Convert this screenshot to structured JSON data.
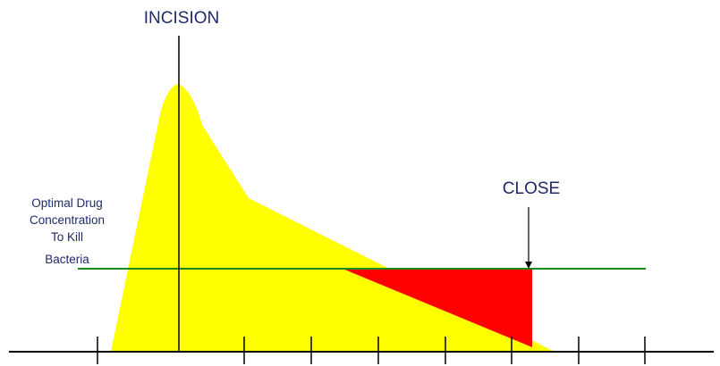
{
  "labels": {
    "incision": "INCISION",
    "close": "CLOSE",
    "threshold_line1": "Optimal Drug",
    "threshold_line2": "Concentration",
    "threshold_line3": "To Kill",
    "threshold_line4": "Bacteria"
  },
  "colors": {
    "concentration_fill": "#ffff00",
    "deficit_fill": "#ff0000",
    "threshold_line": "#1a8a1a",
    "axis": "#000000",
    "label_text": "#1f2a6b"
  }
}
